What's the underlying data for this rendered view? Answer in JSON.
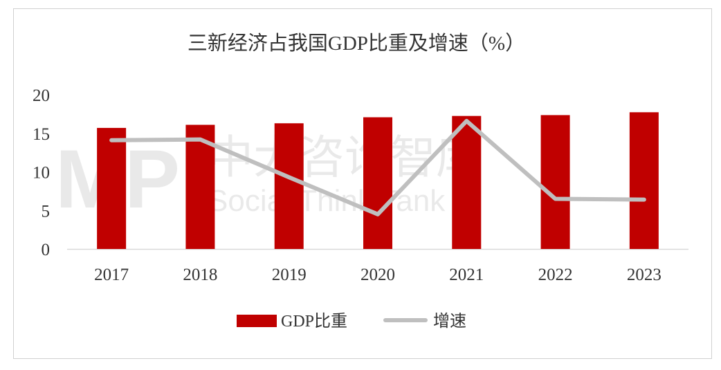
{
  "chart_data": {
    "type": "bar+line",
    "title": "三新经济占我国GDP比重及增速（%）",
    "categories": [
      "2017",
      "2018",
      "2019",
      "2020",
      "2021",
      "2022",
      "2023"
    ],
    "series": [
      {
        "name": "GDP比重",
        "type": "bar",
        "color": "#C00000",
        "values": [
          15.7,
          16.1,
          16.3,
          17.08,
          17.25,
          17.36,
          17.73
        ]
      },
      {
        "name": "增速",
        "type": "line",
        "color": "#BFBFBF",
        "values": [
          14.1,
          14.2,
          9.3,
          4.5,
          16.6,
          6.5,
          6.4
        ]
      }
    ],
    "yticks": [
      0,
      5,
      10,
      15,
      20
    ],
    "ylim": [
      0,
      20
    ],
    "grid": false,
    "legend": "bottom"
  },
  "watermark": {
    "text_cn": "中大咨询智库",
    "text_en": "Social Think Tank"
  }
}
